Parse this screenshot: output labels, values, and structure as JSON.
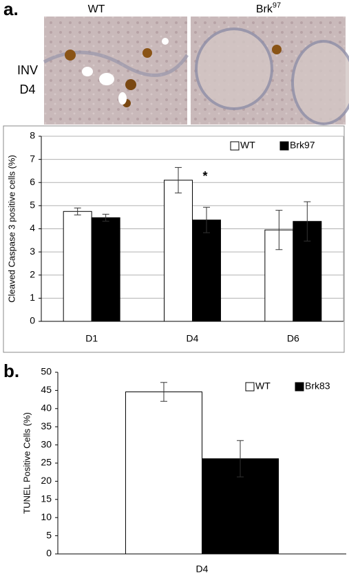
{
  "panels": [
    "a.",
    "b."
  ],
  "images": {
    "columns": [
      {
        "text": "WT"
      },
      {
        "base": "Brk",
        "sup": "97"
      }
    ],
    "row": [
      "INV",
      "D4"
    ]
  },
  "chart_data": [
    {
      "type": "bar",
      "ylabel": "Cleaved Caspase 3 positive cells (%)",
      "categories": [
        "D1",
        "D4",
        "D6"
      ],
      "series": [
        {
          "name": "WT",
          "color": "#ffffff",
          "values": [
            4.75,
            6.1,
            3.95
          ],
          "errors": [
            0.15,
            0.55,
            0.85
          ]
        },
        {
          "name": "Brk97",
          "color": "#000000",
          "values": [
            4.48,
            4.38,
            4.32
          ],
          "errors": [
            0.15,
            0.55,
            0.85
          ]
        }
      ],
      "annotation": "*",
      "ylim": [
        0,
        8
      ],
      "yticks": [
        0,
        1,
        2,
        3,
        4,
        5,
        6,
        7,
        8
      ],
      "grid": true,
      "legend": "upper right"
    },
    {
      "type": "bar",
      "ylabel": "TUNEL Positive Cells (%)",
      "categories": [
        "D4"
      ],
      "series": [
        {
          "name": "WT",
          "color": "#ffffff",
          "values": [
            44.6
          ],
          "errors": [
            2.6
          ]
        },
        {
          "name": "Brk83",
          "color": "#000000",
          "values": [
            26.2
          ],
          "errors": [
            5
          ]
        }
      ],
      "ylim": [
        0,
        50
      ],
      "yticks": [
        0,
        5,
        10,
        15,
        20,
        25,
        30,
        35,
        40,
        45,
        50
      ],
      "grid": false,
      "legend": "upper right"
    }
  ]
}
